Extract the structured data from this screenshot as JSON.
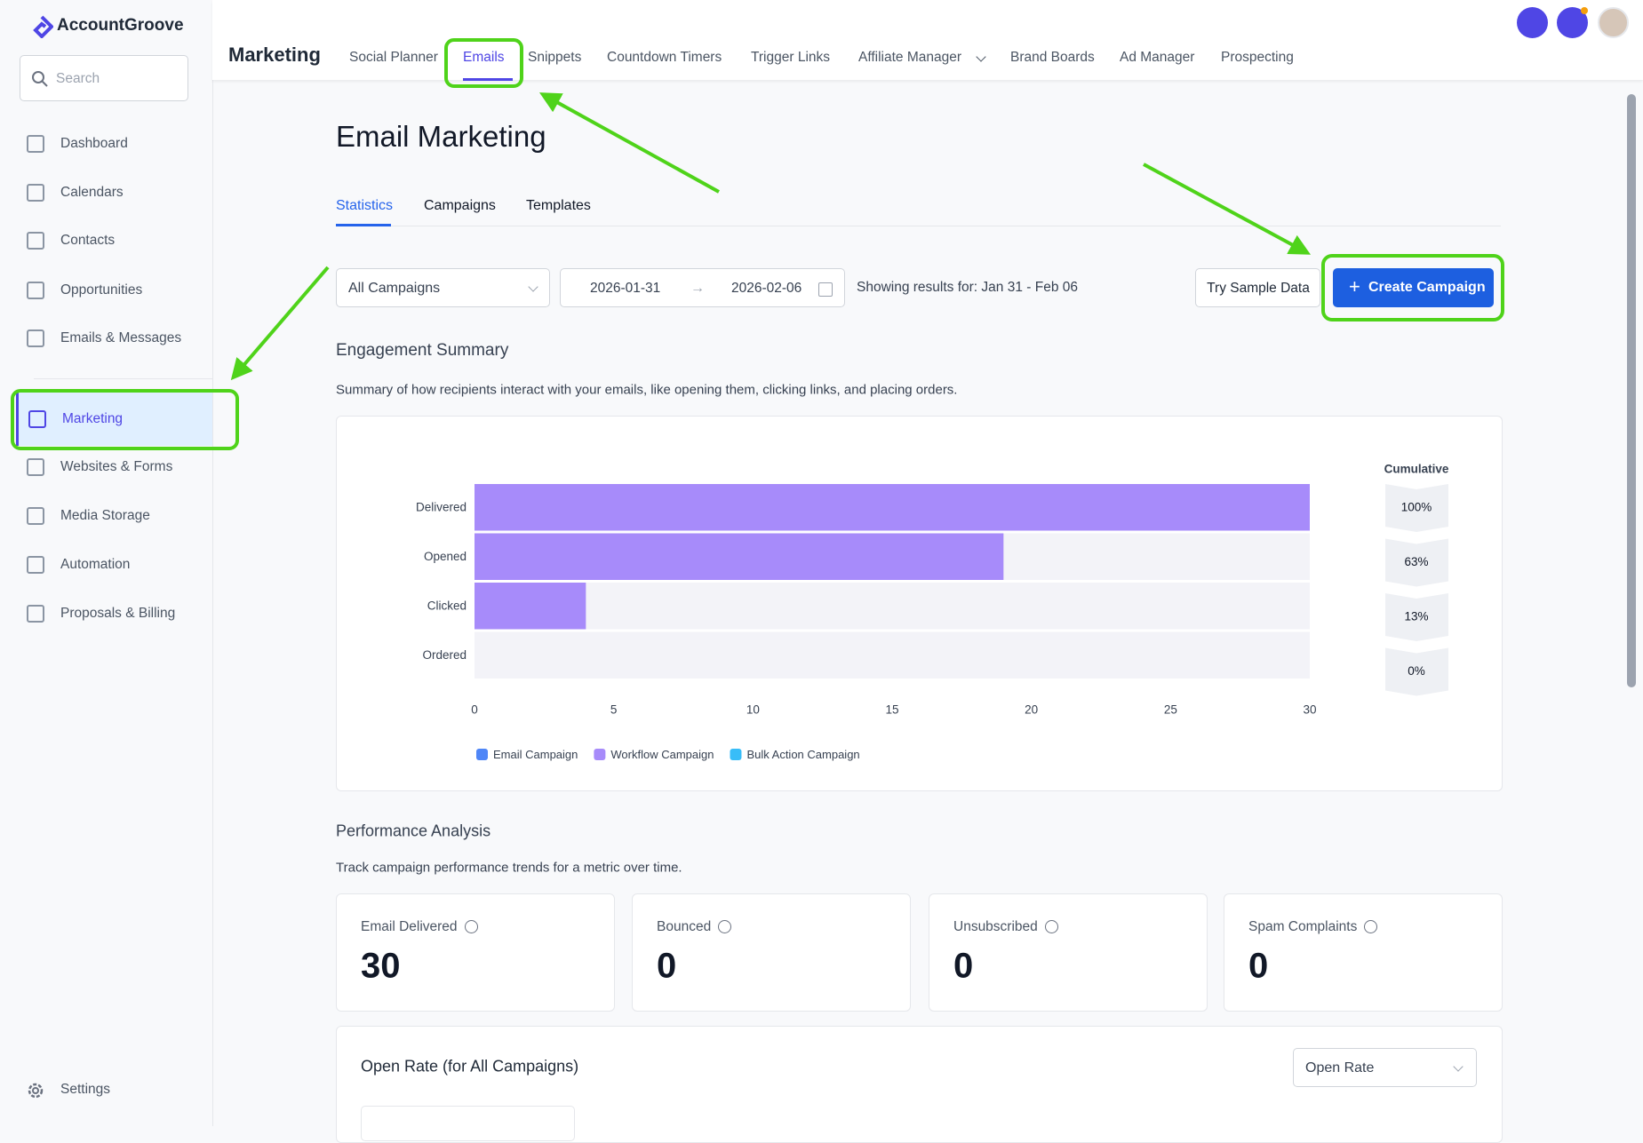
{
  "app": {
    "logo": "AccountGroove",
    "search": "Search",
    "nav": [
      "Dashboard",
      "Calendars",
      "Contacts",
      "Opportunities",
      "Emails & Messages",
      "Marketing",
      "Websites & Forms",
      "Media Storage",
      "Automation",
      "Proposals & Billing"
    ],
    "settings": "Settings"
  },
  "topbar": {
    "section": "Marketing",
    "tabs": [
      "Social Planner",
      "Emails",
      "Snippets",
      "Countdown Timers",
      "Trigger Links",
      "Affiliate Manager",
      "Brand Boards",
      "Ad Manager",
      "Prospecting"
    ]
  },
  "page": {
    "title": "Email Marketing",
    "subtabs": [
      "Statistics",
      "Campaigns",
      "Templates"
    ],
    "filter": {
      "campaign": "All Campaigns",
      "start": "2026-01-31",
      "end": "2026-02-06",
      "showing": "Showing results for: Jan 31 - Feb 06",
      "sample": "Try Sample Data",
      "create": "Create Campaign"
    },
    "engagement": {
      "title": "Engagement Summary",
      "description": "Summary of how recipients interact with your emails, like opening them, clicking links, and placing orders."
    },
    "performance": {
      "title": "Performance Analysis",
      "description": "Track campaign performance trends for a metric over time.",
      "cards": [
        {
          "label": "Email Delivered",
          "value": 30
        },
        {
          "label": "Bounced",
          "value": 0
        },
        {
          "label": "Unsubscribed",
          "value": 0
        },
        {
          "label": "Spam Complaints",
          "value": 0
        }
      ]
    },
    "open_rate": {
      "title": "Open Rate (for All Campaigns)",
      "select": "Open Rate"
    }
  },
  "chart_data": {
    "type": "hbar",
    "categories": [
      "Delivered",
      "Opened",
      "Clicked",
      "Ordered"
    ],
    "series": [
      {
        "name": "Email Campaign",
        "color": "#4f86f7"
      },
      {
        "name": "Workflow Campaign",
        "color": "#a78bfa",
        "values": [
          30,
          19,
          4,
          0
        ]
      },
      {
        "name": "Bulk Action Campaign",
        "color": "#38bdf8"
      }
    ],
    "xlim": [
      0,
      30
    ],
    "xticks": [
      0,
      5,
      10,
      15,
      20,
      25,
      30
    ],
    "cumulative": {
      "label": "Cumulative",
      "values": [
        100,
        63,
        13,
        0
      ],
      "value_labels": [
        "100%",
        "63%",
        "13%",
        "0%"
      ]
    }
  }
}
